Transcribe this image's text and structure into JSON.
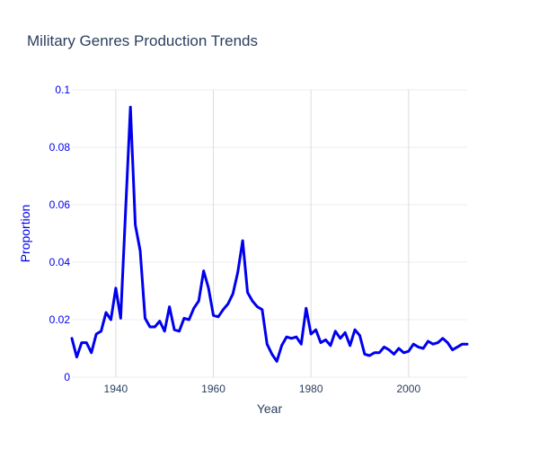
{
  "chart_data": {
    "type": "line",
    "title": "Military Genres Production Trends",
    "xlabel": "Year",
    "ylabel": "Proportion",
    "xlim": [
      1931,
      2012
    ],
    "ylim": [
      0,
      0.1
    ],
    "x_ticks": [
      1940,
      1960,
      1980,
      2000
    ],
    "y_ticks": [
      0,
      0.02,
      0.04,
      0.06,
      0.08,
      0.1
    ],
    "y_tick_labels": [
      "0",
      "0.02",
      "0.04",
      "0.06",
      "0.08",
      "0.1"
    ],
    "grid": {
      "x": true,
      "y": true
    },
    "line_color": "#0000ee",
    "series": [
      {
        "x": [
          1931,
          1932,
          1933,
          1934,
          1935,
          1936,
          1937,
          1938,
          1939,
          1940,
          1941,
          1942,
          1943,
          1944,
          1945,
          1946,
          1947,
          1948,
          1949,
          1950,
          1951,
          1952,
          1953,
          1954,
          1955,
          1956,
          1957,
          1958,
          1959,
          1960,
          1961,
          1962,
          1963,
          1964,
          1965,
          1966,
          1967,
          1968,
          1969,
          1970,
          1971,
          1972,
          1973,
          1974,
          1975,
          1976,
          1977,
          1978,
          1979,
          1980,
          1981,
          1982,
          1983,
          1984,
          1985,
          1986,
          1987,
          1988,
          1989,
          1990,
          1991,
          1992,
          1993,
          1994,
          1995,
          1996,
          1997,
          1998,
          1999,
          2000,
          2001,
          2002,
          2003,
          2004,
          2005,
          2006,
          2007,
          2008,
          2009,
          2010,
          2011,
          2012
        ],
        "values": [
          0.0135,
          0.007,
          0.012,
          0.012,
          0.0085,
          0.015,
          0.016,
          0.0225,
          0.02,
          0.031,
          0.0205,
          0.0575,
          0.094,
          0.053,
          0.044,
          0.0205,
          0.0175,
          0.0175,
          0.0195,
          0.016,
          0.0245,
          0.0165,
          0.016,
          0.0205,
          0.02,
          0.024,
          0.0265,
          0.037,
          0.031,
          0.0215,
          0.021,
          0.0235,
          0.0255,
          0.029,
          0.0365,
          0.0475,
          0.0295,
          0.0265,
          0.0245,
          0.0235,
          0.0115,
          0.008,
          0.0055,
          0.011,
          0.014,
          0.0135,
          0.014,
          0.0115,
          0.024,
          0.015,
          0.0165,
          0.012,
          0.013,
          0.011,
          0.016,
          0.0135,
          0.0155,
          0.011,
          0.0165,
          0.0145,
          0.008,
          0.0075,
          0.0085,
          0.0085,
          0.0105,
          0.0095,
          0.008,
          0.01,
          0.0085,
          0.009,
          0.0115,
          0.0105,
          0.01,
          0.0125,
          0.0115,
          0.012,
          0.0135,
          0.012,
          0.0095,
          0.0105,
          0.0115,
          0.0115
        ]
      }
    ]
  }
}
